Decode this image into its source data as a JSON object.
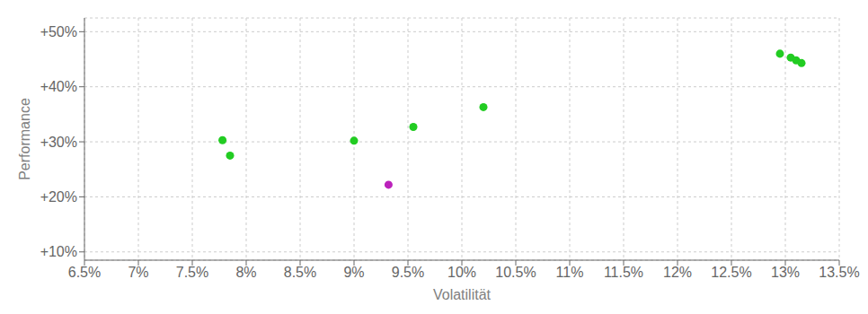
{
  "chart_data": {
    "type": "scatter",
    "xlabel": "Volatilität",
    "ylabel": "Performance",
    "xlim": [
      0.065,
      0.135
    ],
    "ylim": [
      0.085,
      0.525
    ],
    "xticks": [
      {
        "value": 0.065,
        "label": "6.5%"
      },
      {
        "value": 0.07,
        "label": "7%"
      },
      {
        "value": 0.075,
        "label": "7.5%"
      },
      {
        "value": 0.08,
        "label": "8%"
      },
      {
        "value": 0.085,
        "label": "8.5%"
      },
      {
        "value": 0.09,
        "label": "9%"
      },
      {
        "value": 0.095,
        "label": "9.5%"
      },
      {
        "value": 0.1,
        "label": "10%"
      },
      {
        "value": 0.105,
        "label": "10.5%"
      },
      {
        "value": 0.11,
        "label": "11%"
      },
      {
        "value": 0.115,
        "label": "11.5%"
      },
      {
        "value": 0.12,
        "label": "12%"
      },
      {
        "value": 0.125,
        "label": "12.5%"
      },
      {
        "value": 0.13,
        "label": "13%"
      },
      {
        "value": 0.135,
        "label": "13.5%"
      }
    ],
    "yticks": [
      {
        "value": 0.1,
        "label": "+10%"
      },
      {
        "value": 0.2,
        "label": "+20%"
      },
      {
        "value": 0.3,
        "label": "+30%"
      },
      {
        "value": 0.4,
        "label": "+40%"
      },
      {
        "value": 0.5,
        "label": "+50%"
      }
    ],
    "grid": true,
    "series": [
      {
        "color": "#22cc22",
        "x": [
          0.1295,
          0.1305,
          0.131,
          0.1315,
          0.102,
          0.0955,
          0.09,
          0.0778,
          0.0785
        ],
        "y": [
          0.46,
          0.453,
          0.448,
          0.443,
          0.363,
          0.327,
          0.302,
          0.303,
          0.275
        ]
      },
      {
        "color": "#bb22bb",
        "x": [
          0.0932
        ],
        "y": [
          0.222
        ]
      }
    ]
  }
}
